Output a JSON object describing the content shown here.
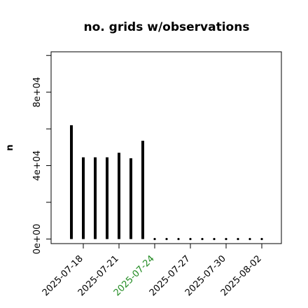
{
  "chart_data": {
    "type": "bar",
    "title": "no. grids w/observations",
    "xlabel": "",
    "ylabel": "n",
    "x": [
      "2025-07-17",
      "2025-07-18",
      "2025-07-19",
      "2025-07-20",
      "2025-07-21",
      "2025-07-22",
      "2025-07-23",
      "2025-07-24",
      "2025-07-25",
      "2025-07-26",
      "2025-07-27",
      "2025-07-28",
      "2025-07-29",
      "2025-07-30",
      "2025-07-31",
      "2025-08-01",
      "2025-08-02"
    ],
    "values": [
      62000,
      44500,
      44500,
      44500,
      47000,
      44000,
      53500,
      0,
      0,
      0,
      0,
      0,
      0,
      0,
      0,
      0,
      0
    ],
    "ylim": [
      -2500,
      102000
    ],
    "yticks": [
      0,
      20000,
      40000,
      60000,
      80000,
      100000
    ],
    "ytick_labels": [
      "0e+00",
      "",
      "4e+04",
      "",
      "8e+04",
      ""
    ],
    "xticks": [
      {
        "date": "2025-07-18",
        "label": "2025-07-18",
        "color": "#000000"
      },
      {
        "date": "2025-07-21",
        "label": "2025-07-21",
        "color": "#000000"
      },
      {
        "date": "2025-07-24",
        "label": "2025-07-24",
        "color": "#228B22"
      },
      {
        "date": "2025-07-27",
        "label": "2025-07-27",
        "color": "#000000"
      },
      {
        "date": "2025-07-30",
        "label": "2025-07-30",
        "color": "#000000"
      },
      {
        "date": "2025-08-02",
        "label": "2025-08-02",
        "color": "#000000"
      }
    ],
    "grid": false,
    "bar_color": "#000000"
  }
}
